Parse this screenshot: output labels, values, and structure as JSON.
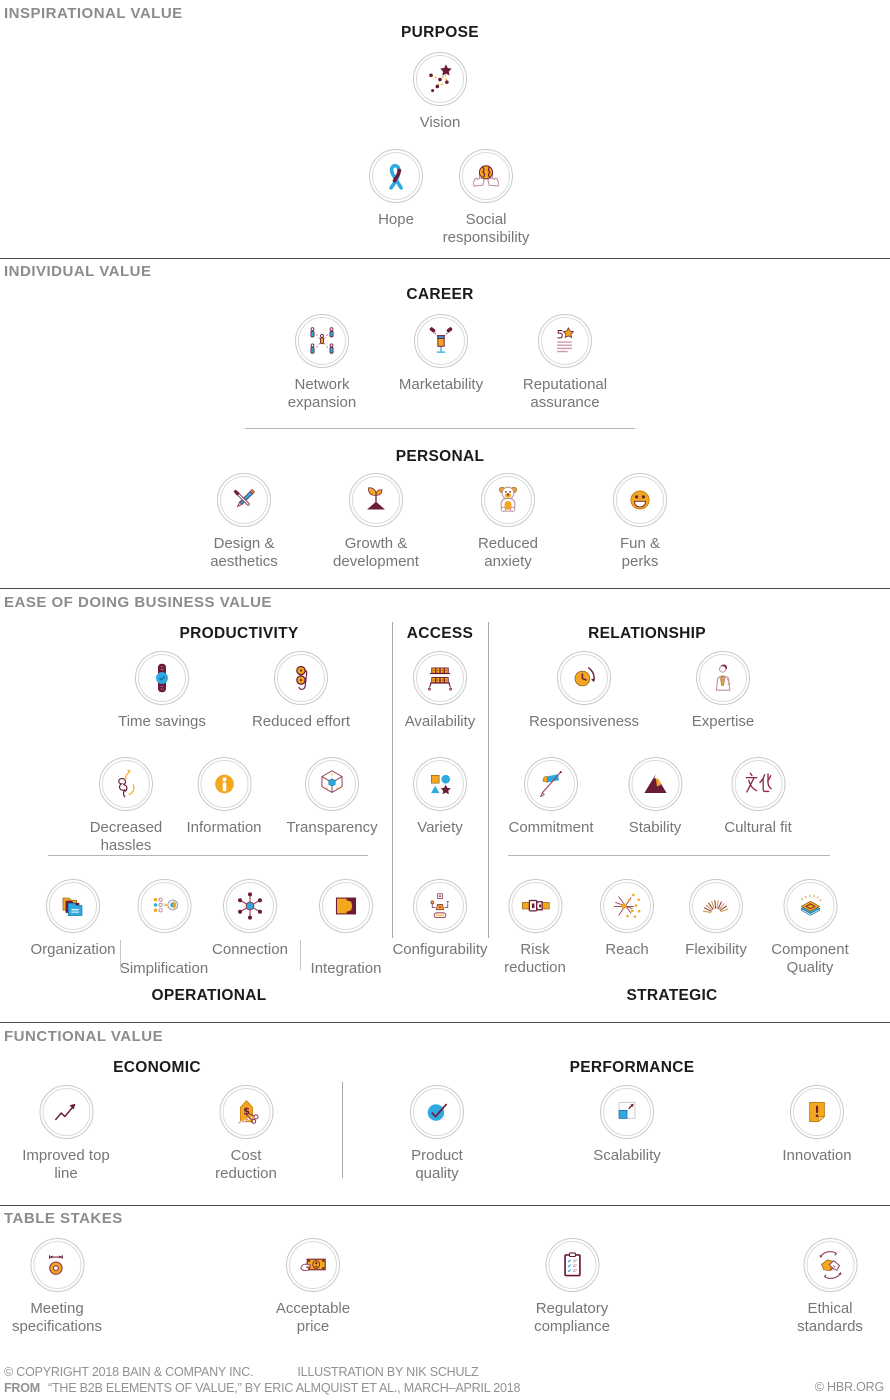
{
  "palette": {
    "maroon": "#6B1B3A",
    "orange": "#F2A71E",
    "blue": "#2FA9E1",
    "label_gray": "#767676",
    "section_gray": "#8C8C8C"
  },
  "sections": {
    "inspirational": {
      "label": "INSPIRATIONAL VALUE",
      "purpose": {
        "title": "PURPOSE",
        "items": [
          {
            "label": "Vision",
            "icon": "vision-icon"
          },
          {
            "label": "Hope",
            "icon": "hope-icon"
          },
          {
            "label": "Social responsibility",
            "icon": "social-responsibility-icon"
          }
        ]
      }
    },
    "individual": {
      "label": "INDIVIDUAL VALUE",
      "career": {
        "title": "CAREER",
        "items": [
          {
            "label": "Network expansion",
            "icon": "network-expansion-icon"
          },
          {
            "label": "Marketability",
            "icon": "marketability-icon"
          },
          {
            "label": "Reputational assurance",
            "icon": "reputational-assurance-icon"
          }
        ]
      },
      "personal": {
        "title": "PERSONAL",
        "items": [
          {
            "label": "Design & aesthetics",
            "icon": "design-aesthetics-icon"
          },
          {
            "label": "Growth & development",
            "icon": "growth-development-icon"
          },
          {
            "label": "Reduced anxiety",
            "icon": "reduced-anxiety-icon"
          },
          {
            "label": "Fun & perks",
            "icon": "fun-perks-icon"
          }
        ]
      }
    },
    "ease": {
      "label": "EASE OF DOING BUSINESS VALUE",
      "productivity": {
        "title": "PRODUCTIVITY",
        "items": [
          {
            "label": "Time savings",
            "icon": "time-savings-icon"
          },
          {
            "label": "Reduced effort",
            "icon": "reduced-effort-icon"
          },
          {
            "label": "Decreased hassles",
            "icon": "decreased-hassles-icon"
          },
          {
            "label": "Information",
            "icon": "information-icon"
          },
          {
            "label": "Transparency",
            "icon": "transparency-icon"
          }
        ]
      },
      "access": {
        "title": "ACCESS",
        "items": [
          {
            "label": "Availability",
            "icon": "availability-icon"
          },
          {
            "label": "Variety",
            "icon": "variety-icon"
          },
          {
            "label": "Configurability",
            "icon": "configurability-icon"
          }
        ]
      },
      "relationship": {
        "title": "RELATIONSHIP",
        "items": [
          {
            "label": "Responsiveness",
            "icon": "responsiveness-icon"
          },
          {
            "label": "Expertise",
            "icon": "expertise-icon"
          },
          {
            "label": "Commitment",
            "icon": "commitment-icon"
          },
          {
            "label": "Stability",
            "icon": "stability-icon"
          },
          {
            "label": "Cultural fit",
            "icon": "cultural-fit-icon"
          }
        ]
      },
      "operational": {
        "title": "OPERATIONAL",
        "items": [
          {
            "label": "Organization",
            "icon": "organization-icon"
          },
          {
            "label": "Simplification",
            "icon": "simplification-icon"
          },
          {
            "label": "Connection",
            "icon": "connection-icon"
          },
          {
            "label": "Integration",
            "icon": "integration-icon"
          }
        ]
      },
      "strategic": {
        "title": "STRATEGIC",
        "items": [
          {
            "label": "Risk reduction",
            "icon": "risk-reduction-icon"
          },
          {
            "label": "Reach",
            "icon": "reach-icon"
          },
          {
            "label": "Flexibility",
            "icon": "flexibility-icon"
          },
          {
            "label": "Component Quality",
            "icon": "component-quality-icon"
          }
        ]
      }
    },
    "functional": {
      "label": "FUNCTIONAL VALUE",
      "economic": {
        "title": "ECONOMIC",
        "items": [
          {
            "label": "Improved top line",
            "icon": "improved-top-line-icon"
          },
          {
            "label": "Cost reduction",
            "icon": "cost-reduction-icon"
          }
        ]
      },
      "performance": {
        "title": "PERFORMANCE",
        "items": [
          {
            "label": "Product quality",
            "icon": "product-quality-icon"
          },
          {
            "label": "Scalability",
            "icon": "scalability-icon"
          },
          {
            "label": "Innovation",
            "icon": "innovation-icon"
          }
        ]
      }
    },
    "table_stakes": {
      "label": "TABLE STAKES",
      "items": [
        {
          "label": "Meeting specifications",
          "icon": "meeting-specifications-icon"
        },
        {
          "label": "Acceptable price",
          "icon": "acceptable-price-icon"
        },
        {
          "label": "Regulatory compliance",
          "icon": "regulatory-compliance-icon"
        },
        {
          "label": "Ethical standards",
          "icon": "ethical-standards-icon"
        }
      ]
    }
  },
  "footer": {
    "copyright": "© COPYRIGHT 2018 BAIN & COMPANY INC.",
    "illustration": "ILLUSTRATION BY NIK SCHULZ",
    "from_label": "FROM",
    "source": "“THE B2B ELEMENTS OF VALUE,” BY ERIC ALMQUIST ET AL., MARCH–APRIL 2018",
    "hbr": "© HBR.ORG"
  }
}
